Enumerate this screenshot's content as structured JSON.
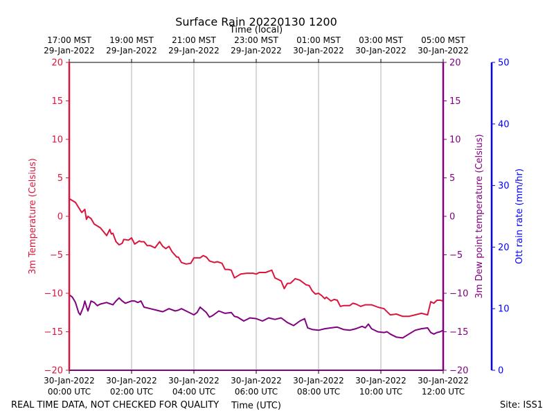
{
  "title": "Surface Rain 20220130 1200",
  "top_axis_title": "Time (local)",
  "bottom_axis_title": "Time (UTC)",
  "footer_left": "REAL TIME DATA, NOT CHECKED FOR QUALITY",
  "footer_right": "Site: ISS1",
  "colors": {
    "temperature": "#dc143c",
    "dewpoint": "#800080",
    "rain": "#0000ff",
    "grid": "#b0b0b0",
    "frame": "#000000"
  },
  "chart_data": {
    "type": "line",
    "grid": true,
    "x_range_utc_hours": [
      0,
      12
    ],
    "xticks_utc": [
      {
        "x": 0,
        "line1": "30-Jan-2022",
        "line2": "00:00 UTC"
      },
      {
        "x": 2,
        "line1": "30-Jan-2022",
        "line2": "02:00 UTC"
      },
      {
        "x": 4,
        "line1": "30-Jan-2022",
        "line2": "04:00 UTC"
      },
      {
        "x": 6,
        "line1": "30-Jan-2022",
        "line2": "06:00 UTC"
      },
      {
        "x": 8,
        "line1": "30-Jan-2022",
        "line2": "08:00 UTC"
      },
      {
        "x": 10,
        "line1": "30-Jan-2022",
        "line2": "10:00 UTC"
      },
      {
        "x": 12,
        "line1": "30-Jan-2022",
        "line2": "12:00 UTC"
      }
    ],
    "xticks_local": [
      {
        "x": 0,
        "line1": "17:00 MST",
        "line2": "29-Jan-2022"
      },
      {
        "x": 2,
        "line1": "19:00 MST",
        "line2": "29-Jan-2022"
      },
      {
        "x": 4,
        "line1": "21:00 MST",
        "line2": "29-Jan-2022"
      },
      {
        "x": 6,
        "line1": "23:00 MST",
        "line2": "29-Jan-2022"
      },
      {
        "x": 8,
        "line1": "01:00 MST",
        "line2": "30-Jan-2022"
      },
      {
        "x": 10,
        "line1": "03:00 MST",
        "line2": "30-Jan-2022"
      },
      {
        "x": 12,
        "line1": "05:00 MST",
        "line2": "30-Jan-2022"
      }
    ],
    "axes": {
      "left": {
        "label": "3m Temperature (Celsius)",
        "ylim": [
          -20,
          20
        ],
        "ticks": [
          "-20",
          "-15",
          "-10",
          "-5",
          "0",
          "5",
          "10",
          "15",
          "20"
        ]
      },
      "right1": {
        "label": "3m Dew point temperature (Celsius)",
        "ylim": [
          -20,
          20
        ],
        "ticks": [
          "-20",
          "-15",
          "-10",
          "-5",
          "0",
          "5",
          "10",
          "15",
          "20"
        ]
      },
      "right2": {
        "label": "Ott rain rate (mm/hr)",
        "ylim": [
          0,
          50
        ],
        "ticks": [
          "0",
          "10",
          "20",
          "30",
          "40",
          "50"
        ]
      }
    },
    "series": [
      {
        "key": "temperature",
        "axis": "left",
        "x": [
          0,
          0.2,
          0.4,
          0.5,
          0.55,
          0.6,
          0.7,
          0.8,
          1.0,
          1.2,
          1.3,
          1.35,
          1.4,
          1.5,
          1.6,
          1.7,
          1.75,
          1.9,
          2.0,
          2.1,
          2.25,
          2.3,
          2.4,
          2.5,
          2.6,
          2.75,
          2.9,
          3.0,
          3.1,
          3.2,
          3.3,
          3.45,
          3.5,
          3.6,
          3.75,
          3.9,
          4.0,
          4.2,
          4.3,
          4.4,
          4.5,
          4.65,
          4.75,
          4.9,
          5.0,
          5.1,
          5.2,
          5.3,
          5.5,
          5.7,
          5.9,
          6.0,
          6.1,
          6.3,
          6.5,
          6.6,
          6.7,
          6.8,
          6.9,
          7.0,
          7.1,
          7.25,
          7.4,
          7.6,
          7.7,
          7.8,
          7.9,
          8.0,
          8.1,
          8.2,
          8.25,
          8.4,
          8.5,
          8.6,
          8.7,
          8.8,
          9.0,
          9.1,
          9.2,
          9.35,
          9.5,
          9.7,
          9.9,
          10.1,
          10.3,
          10.5,
          10.7,
          10.9,
          11.1,
          11.3,
          11.5,
          11.6,
          11.7,
          11.8,
          11.9,
          12.0
        ],
        "y": [
          2.3,
          1.8,
          0.5,
          0.9,
          -0.4,
          0.0,
          -0.3,
          -1.0,
          -1.5,
          -2.5,
          -1.7,
          -2.3,
          -2.2,
          -3.3,
          -3.7,
          -3.5,
          -3.0,
          -3.1,
          -2.8,
          -3.6,
          -3.2,
          -3.3,
          -3.3,
          -3.8,
          -3.8,
          -4.1,
          -3.3,
          -3.9,
          -4.2,
          -3.9,
          -4.6,
          -5.3,
          -5.3,
          -6.0,
          -6.2,
          -6.1,
          -5.4,
          -5.4,
          -5.1,
          -5.3,
          -5.8,
          -6.0,
          -5.9,
          -6.1,
          -6.9,
          -6.9,
          -7.0,
          -8.0,
          -7.5,
          -7.4,
          -7.4,
          -7.5,
          -7.3,
          -7.3,
          -7.0,
          -8.0,
          -8.2,
          -8.4,
          -9.4,
          -8.7,
          -8.7,
          -8.1,
          -8.3,
          -8.9,
          -9.0,
          -9.7,
          -10.1,
          -10.0,
          -10.3,
          -10.7,
          -10.5,
          -11.0,
          -10.8,
          -10.9,
          -11.7,
          -11.6,
          -11.6,
          -11.3,
          -11.4,
          -11.7,
          -11.5,
          -11.5,
          -11.8,
          -12.0,
          -12.8,
          -12.7,
          -13.0,
          -13.0,
          -12.8,
          -12.6,
          -12.8,
          -11.1,
          -11.3,
          -10.9,
          -10.9,
          -11.0
        ]
      },
      {
        "key": "dewpoint",
        "axis": "right1",
        "x": [
          0,
          0.1,
          0.2,
          0.3,
          0.35,
          0.45,
          0.5,
          0.55,
          0.6,
          0.7,
          0.8,
          0.9,
          1.0,
          1.2,
          1.4,
          1.5,
          1.6,
          1.7,
          1.8,
          2.0,
          2.1,
          2.2,
          2.3,
          2.4,
          2.6,
          2.8,
          3.0,
          3.2,
          3.4,
          3.5,
          3.6,
          3.8,
          4.0,
          4.1,
          4.2,
          4.4,
          4.5,
          4.6,
          4.8,
          5.0,
          5.2,
          5.3,
          5.4,
          5.6,
          5.8,
          6.0,
          6.2,
          6.4,
          6.6,
          6.8,
          7.0,
          7.2,
          7.4,
          7.55,
          7.65,
          7.8,
          8.0,
          8.2,
          8.4,
          8.6,
          8.8,
          9.0,
          9.2,
          9.4,
          9.5,
          9.6,
          9.7,
          9.9,
          10.1,
          10.2,
          10.3,
          10.5,
          10.7,
          10.9,
          11.1,
          11.3,
          11.5,
          11.6,
          11.7,
          11.8,
          11.9,
          12.0
        ],
        "y": [
          -10.2,
          -10.5,
          -11.2,
          -12.5,
          -12.8,
          -11.8,
          -11.0,
          -11.7,
          -12.3,
          -11.0,
          -11.2,
          -11.6,
          -11.4,
          -11.2,
          -11.5,
          -11.0,
          -10.6,
          -11.0,
          -11.3,
          -11.0,
          -11.0,
          -11.2,
          -11.0,
          -11.8,
          -12.0,
          -12.2,
          -12.4,
          -12.0,
          -12.3,
          -12.2,
          -12.0,
          -12.4,
          -12.8,
          -12.5,
          -11.8,
          -12.5,
          -13.1,
          -12.9,
          -12.3,
          -12.6,
          -12.5,
          -13.0,
          -13.1,
          -13.6,
          -13.2,
          -13.3,
          -13.6,
          -13.2,
          -13.4,
          -13.2,
          -13.8,
          -14.2,
          -13.6,
          -13.3,
          -14.5,
          -14.7,
          -14.8,
          -14.6,
          -14.5,
          -14.4,
          -14.7,
          -14.8,
          -14.6,
          -14.3,
          -14.5,
          -14.0,
          -14.6,
          -15.0,
          -15.1,
          -15.0,
          -15.3,
          -15.7,
          -15.8,
          -15.3,
          -14.8,
          -14.6,
          -14.5,
          -15.1,
          -15.3,
          -15.1,
          -15.0,
          -14.8
        ]
      }
    ]
  }
}
